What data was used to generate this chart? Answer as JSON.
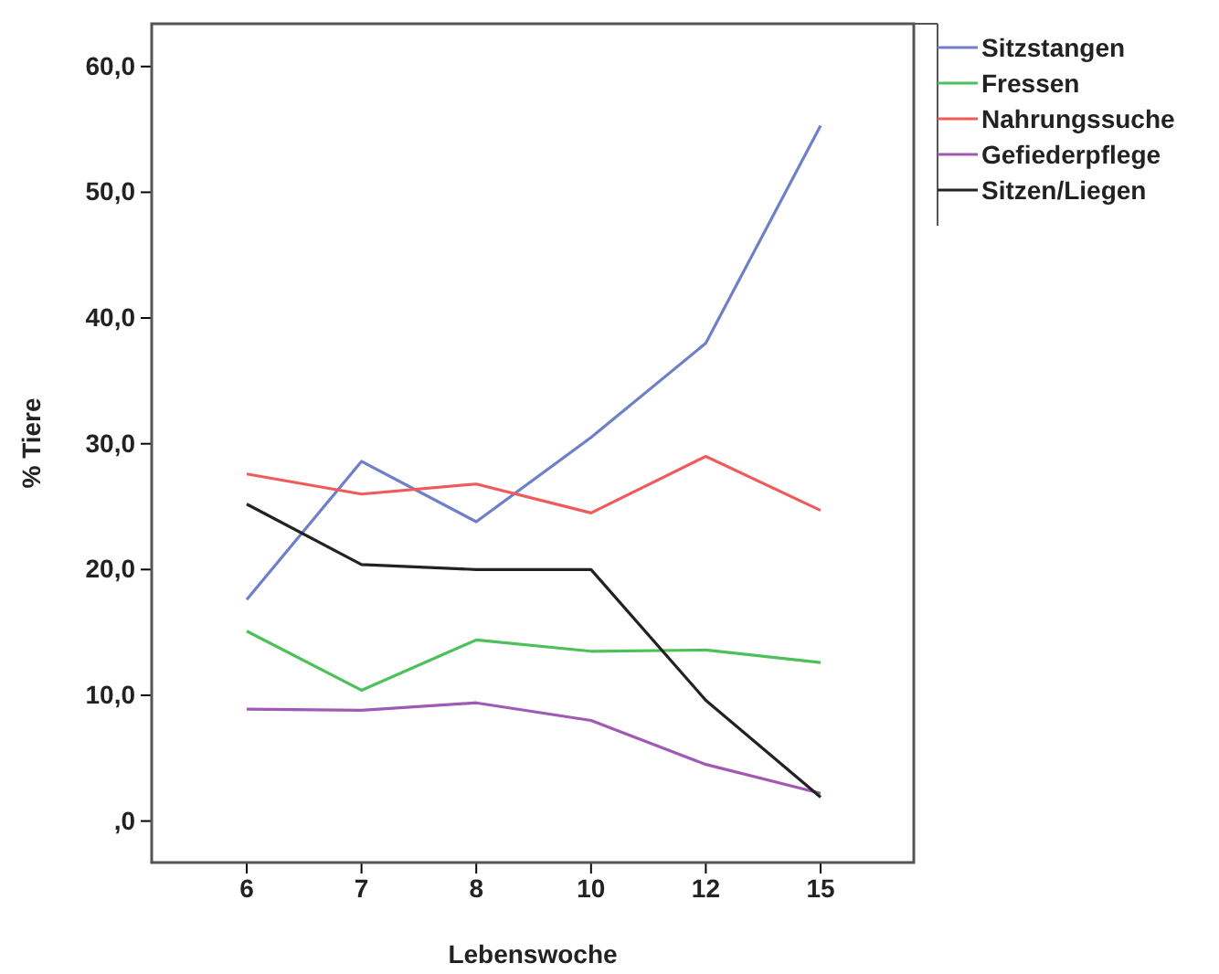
{
  "chart_data": {
    "type": "line",
    "xlabel": "Lebenswoche",
    "ylabel": "% Tiere",
    "categories": [
      "6",
      "7",
      "8",
      "10",
      "12",
      "15"
    ],
    "ylim": [
      -3.3,
      63.4
    ],
    "yticks": [
      {
        "value": 0,
        "label": ",0"
      },
      {
        "value": 10,
        "label": "10,0"
      },
      {
        "value": 20,
        "label": "20,0"
      },
      {
        "value": 30,
        "label": "30,0"
      },
      {
        "value": 40,
        "label": "40,0"
      },
      {
        "value": 50,
        "label": "50,0"
      },
      {
        "value": 60,
        "label": "60,0"
      }
    ],
    "grid": false,
    "legend": "top right",
    "marker": "none",
    "line_style": "solid",
    "series": [
      {
        "name": "Sitzstangen",
        "color": "#6f7fc8",
        "values": [
          17.6,
          28.6,
          23.8,
          30.5,
          38.0,
          55.3
        ]
      },
      {
        "name": "Fressen",
        "color": "#4cc15a",
        "values": [
          15.1,
          10.4,
          14.4,
          13.5,
          13.6,
          12.6
        ]
      },
      {
        "name": "Nahrungssuche",
        "color": "#f05a5a",
        "values": [
          27.6,
          26.0,
          26.8,
          24.5,
          29.0,
          24.7
        ]
      },
      {
        "name": "Gefiederpflege",
        "color": "#a05ab4",
        "values": [
          8.9,
          8.8,
          9.4,
          8.0,
          4.5,
          2.2
        ]
      },
      {
        "name": "Sitzen/Liegen",
        "color": "#222222",
        "values": [
          25.2,
          20.4,
          20.0,
          20.0,
          9.6,
          1.9
        ]
      }
    ]
  }
}
